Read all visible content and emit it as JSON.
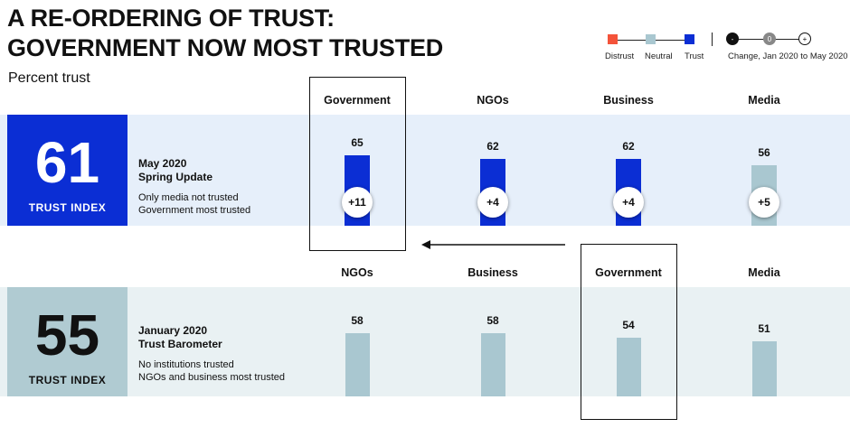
{
  "title_line1": "A RE-ORDERING OF TRUST:",
  "title_line2": "GOVERNMENT NOW MOST TRUSTED",
  "subtitle": "Percent trust",
  "legend": {
    "distrust": "Distrust",
    "neutral": "Neutral",
    "trust": "Trust",
    "change": "Change, Jan 2020 to May 2020",
    "minus_symbol": "-",
    "zero_symbol": "0",
    "plus_symbol": "+"
  },
  "colors": {
    "distrust": "#f4533a",
    "neutral": "#a9c7d0",
    "trust": "#0b2ed4",
    "band_top": "#e6effa",
    "band_bottom": "#e9f1f3",
    "index_top_bg": "#0b2ed4",
    "index_bottom_bg": "#b0cbd2"
  },
  "may": {
    "index_value": "61",
    "index_label": "TRUST INDEX",
    "title_line1": "May 2020",
    "title_line2": "Spring Update",
    "note1": "Only media not trusted",
    "note2": "Government most trusted"
  },
  "jan": {
    "index_value": "55",
    "index_label": "TRUST INDEX",
    "title_line1": "January 2020",
    "title_line2": "Trust Barometer",
    "note1": "No institutions trusted",
    "note2": "NGOs and business most trusted"
  },
  "chart_data": [
    {
      "type": "bar",
      "title": "May 2020 Spring Update",
      "categories": [
        "Government",
        "NGOs",
        "Business",
        "Media"
      ],
      "values": [
        65,
        62,
        62,
        56
      ],
      "value_labels": [
        "65",
        "62",
        "62",
        "56"
      ],
      "changes": [
        "+11",
        "+4",
        "+4",
        "+5"
      ],
      "status": [
        "trust",
        "trust",
        "trust",
        "neutral"
      ],
      "ylim": [
        0,
        100
      ]
    },
    {
      "type": "bar",
      "title": "January 2020 Trust Barometer",
      "categories": [
        "NGOs",
        "Business",
        "Government",
        "Media"
      ],
      "values": [
        58,
        58,
        54,
        51
      ],
      "value_labels": [
        "58",
        "58",
        "54",
        "51"
      ],
      "status": [
        "neutral",
        "neutral",
        "neutral",
        "neutral"
      ],
      "ylim": [
        0,
        100
      ]
    }
  ]
}
